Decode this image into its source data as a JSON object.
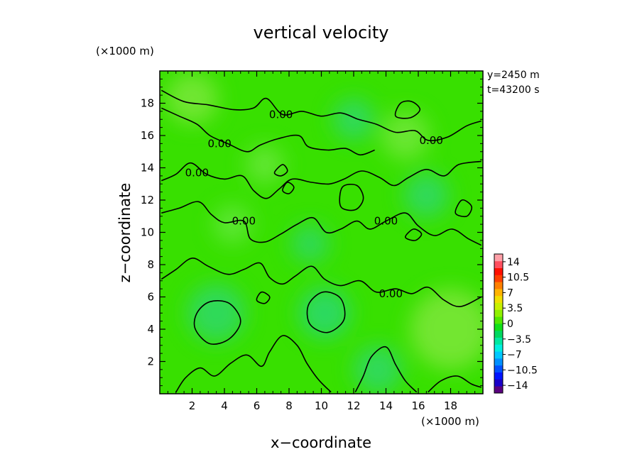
{
  "chart_data": {
    "type": "heatmap",
    "title": "vertical velocity",
    "xlabel": "x−coordinate",
    "ylabel": "z−coordinate",
    "x_unit_label": "(×1000 m)",
    "y_unit_label": "(×1000 m)",
    "xlim": [
      0,
      20
    ],
    "ylim": [
      0,
      20
    ],
    "x_ticks": [
      {
        "value": 2,
        "label": "2"
      },
      {
        "value": 4,
        "label": "4"
      },
      {
        "value": 6,
        "label": "6"
      },
      {
        "value": 8,
        "label": "8"
      },
      {
        "value": 10,
        "label": "10"
      },
      {
        "value": 12,
        "label": "12"
      },
      {
        "value": 14,
        "label": "14"
      },
      {
        "value": 16,
        "label": "16"
      },
      {
        "value": 18,
        "label": "18"
      }
    ],
    "y_ticks": [
      {
        "value": 2,
        "label": "2"
      },
      {
        "value": 4,
        "label": "4"
      },
      {
        "value": 6,
        "label": "6"
      },
      {
        "value": 8,
        "label": "8"
      },
      {
        "value": 10,
        "label": "10"
      },
      {
        "value": 12,
        "label": "12"
      },
      {
        "value": 14,
        "label": "14"
      },
      {
        "value": 16,
        "label": "16"
      },
      {
        "value": 18,
        "label": "18"
      }
    ],
    "info_lines": [
      "y=2450 m",
      "t=43200 s"
    ],
    "colorbar": {
      "range": [
        -15.75,
        15.75
      ],
      "step": 1.75,
      "ticks": [
        {
          "value": 14,
          "label": "14"
        },
        {
          "value": 10.5,
          "label": "10.5"
        },
        {
          "value": 7,
          "label": "7"
        },
        {
          "value": 3.5,
          "label": "3.5"
        },
        {
          "value": 0,
          "label": "0"
        },
        {
          "value": -3.5,
          "label": "−3.5"
        },
        {
          "value": -7,
          "label": "−7"
        },
        {
          "value": -10.5,
          "label": "−10.5"
        },
        {
          "value": -14,
          "label": "−14"
        }
      ],
      "colors": [
        "#5a007f",
        "#1a00c8",
        "#0014ff",
        "#0050ff",
        "#0090ff",
        "#00c8ff",
        "#00f0e0",
        "#00e8a0",
        "#00d860",
        "#10e018",
        "#50e800",
        "#90f000",
        "#c8f000",
        "#f0e000",
        "#ffb400",
        "#ff8000",
        "#ff4000",
        "#ff1000",
        "#ff5060",
        "#ffa0a8"
      ]
    },
    "field_base_color": "#38e000",
    "field_patches": [
      {
        "x": 2,
        "z": 18.3,
        "r": 1.6,
        "color": "#7ae83a"
      },
      {
        "x": 15.2,
        "z": 16.0,
        "r": 1.5,
        "color": "#72e83a"
      },
      {
        "x": 18,
        "z": 4.0,
        "r": 2.5,
        "color": "#7ee63a"
      },
      {
        "x": 10.2,
        "z": 5.0,
        "r": 1.6,
        "color": "#28d870"
      },
      {
        "x": 3.5,
        "z": 5.0,
        "r": 1.8,
        "color": "#30d868"
      },
      {
        "x": 12,
        "z": 17,
        "r": 1.3,
        "color": "#30d868"
      },
      {
        "x": 6.5,
        "z": 14.2,
        "r": 1.2,
        "color": "#68e83a"
      },
      {
        "x": 9.3,
        "z": 9.3,
        "r": 1.2,
        "color": "#30d860"
      },
      {
        "x": 16.5,
        "z": 12.3,
        "r": 1.4,
        "color": "#30d868"
      },
      {
        "x": 13.5,
        "z": 1.5,
        "r": 1.5,
        "color": "#30d868"
      },
      {
        "x": 4.5,
        "z": 10.5,
        "r": 1.2,
        "color": "#60e83a"
      }
    ],
    "contour_level": 0,
    "contour_labels": [
      {
        "x": 7.5,
        "z": 17.3,
        "label": "0.00"
      },
      {
        "x": 3.7,
        "z": 15.5,
        "label": "0.00"
      },
      {
        "x": 2.3,
        "z": 13.7,
        "label": "0.00"
      },
      {
        "x": 16.8,
        "z": 15.7,
        "label": "0.00"
      },
      {
        "x": 5.2,
        "z": 10.7,
        "label": "0.00"
      },
      {
        "x": 14,
        "z": 10.7,
        "label": "0.00"
      },
      {
        "x": 14.3,
        "z": 6.2,
        "label": "0.00"
      }
    ],
    "contours": [
      {
        "closed": false,
        "pts": [
          [
            0.1,
            18.8
          ],
          [
            1.5,
            18.1
          ],
          [
            3.0,
            17.9
          ],
          [
            4.6,
            17.6
          ],
          [
            5.8,
            17.7
          ],
          [
            6.6,
            18.3
          ],
          [
            7.6,
            17.3
          ],
          [
            8.8,
            17.5
          ],
          [
            10.0,
            17.2
          ],
          [
            11.2,
            17.4
          ],
          [
            12.3,
            17.0
          ],
          [
            13.4,
            16.7
          ],
          [
            14.6,
            16.2
          ],
          [
            15.8,
            16.3
          ],
          [
            16.6,
            15.7
          ],
          [
            17.8,
            15.9
          ],
          [
            19.0,
            16.6
          ],
          [
            19.9,
            16.9
          ]
        ]
      },
      {
        "closed": false,
        "pts": [
          [
            0.1,
            17.7
          ],
          [
            1.2,
            17.2
          ],
          [
            2.3,
            16.7
          ],
          [
            3.1,
            16.0
          ],
          [
            4.2,
            15.5
          ],
          [
            5.4,
            15.0
          ],
          [
            6.2,
            15.4
          ],
          [
            7.3,
            15.8
          ],
          [
            8.6,
            16.0
          ],
          [
            9.2,
            15.3
          ],
          [
            10.4,
            15.1
          ],
          [
            11.5,
            15.2
          ],
          [
            12.4,
            14.8
          ],
          [
            13.3,
            15.1
          ]
        ]
      },
      {
        "closed": false,
        "pts": [
          [
            0.1,
            13.2
          ],
          [
            1.0,
            13.6
          ],
          [
            1.9,
            14.3
          ],
          [
            2.9,
            13.6
          ],
          [
            4.0,
            13.3
          ],
          [
            5.1,
            13.5
          ],
          [
            5.8,
            12.6
          ],
          [
            6.6,
            12.1
          ],
          [
            7.4,
            12.7
          ],
          [
            8.2,
            13.3
          ],
          [
            9.4,
            13.1
          ],
          [
            10.5,
            13.0
          ],
          [
            11.4,
            13.3
          ],
          [
            12.5,
            13.8
          ],
          [
            13.6,
            13.4
          ],
          [
            14.5,
            12.9
          ],
          [
            15.4,
            13.4
          ],
          [
            16.5,
            13.9
          ],
          [
            17.6,
            13.5
          ],
          [
            18.5,
            14.2
          ],
          [
            19.9,
            14.4
          ]
        ]
      },
      {
        "closed": false,
        "pts": [
          [
            0.1,
            11.2
          ],
          [
            1.2,
            11.5
          ],
          [
            2.4,
            11.9
          ],
          [
            3.2,
            11.1
          ],
          [
            4.0,
            10.6
          ],
          [
            5.2,
            10.7
          ],
          [
            5.6,
            9.6
          ],
          [
            6.5,
            9.4
          ],
          [
            7.5,
            9.9
          ],
          [
            8.5,
            10.5
          ],
          [
            9.5,
            10.9
          ],
          [
            10.3,
            10.0
          ],
          [
            11.2,
            10.2
          ],
          [
            12.2,
            10.7
          ],
          [
            13.0,
            10.2
          ],
          [
            14.0,
            10.7
          ],
          [
            15.2,
            11.2
          ],
          [
            16.0,
            10.4
          ],
          [
            17.0,
            9.8
          ],
          [
            18.1,
            10.2
          ],
          [
            19.1,
            9.6
          ],
          [
            19.9,
            9.2
          ]
        ]
      },
      {
        "closed": false,
        "pts": [
          [
            0.1,
            7.1
          ],
          [
            1.0,
            7.7
          ],
          [
            2.0,
            8.4
          ],
          [
            3.0,
            7.9
          ],
          [
            4.2,
            7.4
          ],
          [
            5.2,
            7.7
          ],
          [
            6.2,
            8.1
          ],
          [
            6.8,
            7.2
          ],
          [
            7.6,
            6.8
          ],
          [
            8.4,
            7.3
          ],
          [
            9.4,
            7.9
          ],
          [
            10.2,
            7.1
          ],
          [
            11.2,
            6.7
          ],
          [
            12.4,
            7.0
          ],
          [
            13.4,
            6.3
          ],
          [
            14.6,
            6.5
          ],
          [
            15.6,
            6.2
          ],
          [
            16.6,
            6.6
          ],
          [
            17.6,
            5.8
          ],
          [
            18.6,
            5.4
          ],
          [
            19.9,
            6.0
          ]
        ]
      },
      {
        "closed": false,
        "pts": [
          [
            1.0,
            0.1
          ],
          [
            1.6,
            1.0
          ],
          [
            2.5,
            1.6
          ],
          [
            3.4,
            1.1
          ],
          [
            4.4,
            1.9
          ],
          [
            5.4,
            2.4
          ],
          [
            6.3,
            1.7
          ],
          [
            6.8,
            2.6
          ],
          [
            7.6,
            3.6
          ],
          [
            8.5,
            3.0
          ],
          [
            9.1,
            1.9
          ],
          [
            9.8,
            0.9
          ],
          [
            10.6,
            0.1
          ]
        ]
      },
      {
        "closed": false,
        "pts": [
          [
            12.1,
            0.1
          ],
          [
            12.6,
            1.1
          ],
          [
            13.1,
            2.3
          ],
          [
            14.0,
            2.9
          ],
          [
            14.6,
            1.8
          ],
          [
            15.2,
            0.8
          ],
          [
            15.9,
            0.1
          ]
        ]
      },
      {
        "closed": false,
        "pts": [
          [
            16.6,
            0.1
          ],
          [
            17.4,
            0.8
          ],
          [
            18.4,
            1.1
          ],
          [
            19.3,
            0.6
          ],
          [
            19.9,
            0.4
          ]
        ]
      },
      {
        "closed": true,
        "pts": [
          [
            2.2,
            4.0
          ],
          [
            3.1,
            3.1
          ],
          [
            4.3,
            3.4
          ],
          [
            5.0,
            4.5
          ],
          [
            4.3,
            5.6
          ],
          [
            3.1,
            5.7
          ],
          [
            2.3,
            5.0
          ]
        ]
      },
      {
        "closed": true,
        "pts": [
          [
            9.3,
            4.3
          ],
          [
            10.4,
            3.8
          ],
          [
            11.4,
            4.6
          ],
          [
            11.2,
            5.9
          ],
          [
            10.1,
            6.3
          ],
          [
            9.2,
            5.5
          ]
        ]
      },
      {
        "closed": true,
        "pts": [
          [
            11.2,
            11.6
          ],
          [
            12.1,
            11.4
          ],
          [
            12.6,
            12.1
          ],
          [
            12.2,
            12.9
          ],
          [
            11.3,
            12.8
          ]
        ]
      },
      {
        "closed": true,
        "pts": [
          [
            15.2,
            9.7
          ],
          [
            15.8,
            9.5
          ],
          [
            16.2,
            9.9
          ],
          [
            15.7,
            10.2
          ]
        ]
      },
      {
        "closed": true,
        "pts": [
          [
            14.6,
            17.2
          ],
          [
            15.5,
            17.1
          ],
          [
            16.1,
            17.6
          ],
          [
            15.6,
            18.1
          ],
          [
            14.9,
            18.0
          ]
        ]
      },
      {
        "closed": true,
        "pts": [
          [
            7.1,
            13.7
          ],
          [
            7.5,
            13.5
          ],
          [
            7.9,
            13.8
          ],
          [
            7.6,
            14.2
          ]
        ]
      },
      {
        "closed": true,
        "pts": [
          [
            7.6,
            12.6
          ],
          [
            8.0,
            12.4
          ],
          [
            8.3,
            12.8
          ],
          [
            7.9,
            13.1
          ]
        ]
      },
      {
        "closed": true,
        "pts": [
          [
            18.3,
            11.2
          ],
          [
            19.0,
            11.0
          ],
          [
            19.3,
            11.6
          ],
          [
            18.7,
            12.0
          ]
        ]
      },
      {
        "closed": true,
        "pts": [
          [
            6.0,
            5.8
          ],
          [
            6.5,
            5.6
          ],
          [
            6.8,
            6.0
          ],
          [
            6.3,
            6.3
          ]
        ]
      }
    ]
  }
}
